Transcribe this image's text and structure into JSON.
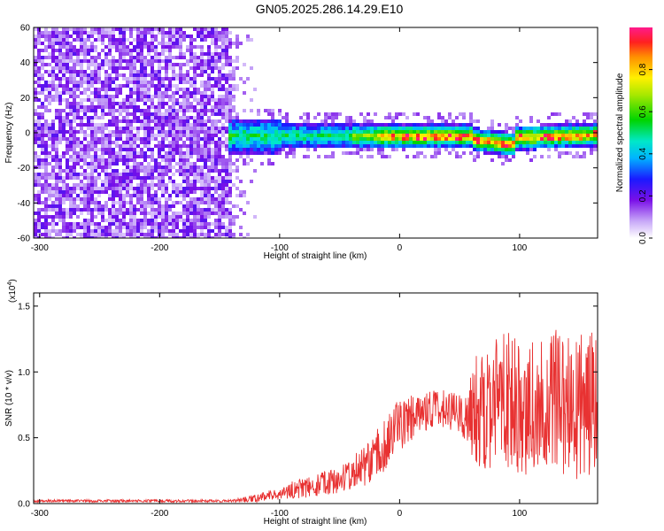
{
  "title": "GN05.2025.286.14.29.E10",
  "chart_data": [
    {
      "type": "heatmap",
      "name": "spectrogram",
      "xlabel": "Height of straight line (km)",
      "ylabel": "Frequency (Hz)",
      "xlim": [
        -305,
        165
      ],
      "ylim": [
        -60,
        60
      ],
      "xticks": [
        -300,
        -200,
        -100,
        0,
        100
      ],
      "xtick_labels": [
        "-300",
        "-200",
        "-100",
        "0",
        "100"
      ],
      "yticks": [
        -60,
        -40,
        -20,
        0,
        20,
        40,
        60
      ],
      "ytick_labels": [
        "-60",
        "-40",
        "-20",
        "0",
        "20",
        "40",
        "60"
      ],
      "noise_region_km": [
        -305,
        -120
      ],
      "signal_band_hz": [
        -8,
        8
      ],
      "colorbar": {
        "label": "Normalized spectral amplitude",
        "range": [
          0.0,
          1.0
        ],
        "ticks": [
          0.0,
          0.2,
          0.4,
          0.6,
          0.8
        ],
        "tick_labels": [
          "0.0",
          "0.2",
          "0.4",
          "0.6",
          "0.8"
        ]
      }
    },
    {
      "type": "line",
      "name": "snr",
      "xlabel": "Height of straight line (km)",
      "ylabel": "SNR (10 * v/v)",
      "scale_label": "(x10",
      "scale_exp": "4",
      "scale_close": ")",
      "xlim": [
        -305,
        165
      ],
      "ylim": [
        0,
        1.6
      ],
      "xticks": [
        -300,
        -200,
        -100,
        0,
        100
      ],
      "xtick_labels": [
        "-300",
        "-200",
        "-100",
        "0",
        "100"
      ],
      "yticks": [
        0.0,
        0.5,
        1.0,
        1.5
      ],
      "ytick_labels": [
        "0.0",
        "0.5",
        "1.0",
        "1.5"
      ],
      "color": "#e83232",
      "envelope": {
        "x": [
          -305,
          -140,
          -120,
          -100,
          -80,
          -50,
          -30,
          -15,
          0,
          20,
          40,
          55,
          65,
          75,
          90,
          110,
          130,
          150,
          165
        ],
        "mean": [
          0.02,
          0.02,
          0.04,
          0.08,
          0.12,
          0.18,
          0.28,
          0.42,
          0.6,
          0.7,
          0.72,
          0.65,
          0.72,
          0.8,
          0.75,
          0.72,
          0.78,
          0.75,
          0.7
        ],
        "spread": [
          0.01,
          0.01,
          0.03,
          0.05,
          0.08,
          0.1,
          0.15,
          0.2,
          0.2,
          0.15,
          0.15,
          0.18,
          0.45,
          0.55,
          0.55,
          0.5,
          0.55,
          0.6,
          0.6
        ]
      }
    }
  ]
}
